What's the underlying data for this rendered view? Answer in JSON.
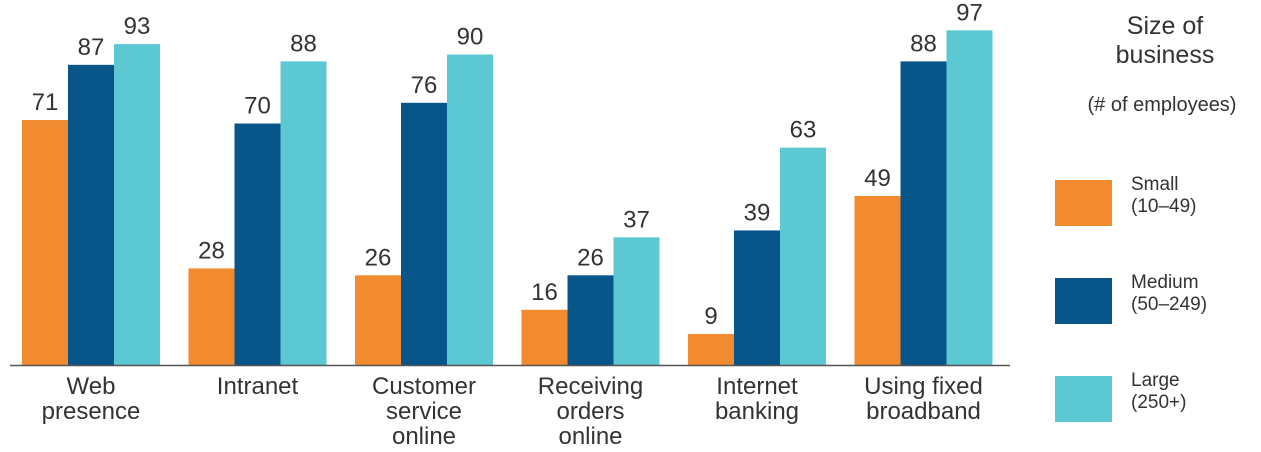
{
  "chart_data": {
    "type": "bar",
    "categories": [
      [
        "Web",
        "presence"
      ],
      [
        "Intranet"
      ],
      [
        "Customer",
        "service",
        "online"
      ],
      [
        "Receiving",
        "orders",
        "online"
      ],
      [
        "Internet",
        "banking"
      ],
      [
        "Using fixed",
        "broadband"
      ]
    ],
    "series": [
      {
        "name": "Small\n(10–49)",
        "color": "#F28A30",
        "values": [
          71,
          28,
          26,
          16,
          9,
          49
        ]
      },
      {
        "name": "Medium\n(50–249)",
        "color": "#08558A",
        "values": [
          87,
          70,
          76,
          26,
          39,
          88
        ]
      },
      {
        "name": "Large\n(250+)",
        "color": "#5CC8D2",
        "values": [
          93,
          88,
          90,
          37,
          63,
          97
        ]
      }
    ],
    "ylim": [
      0,
      100
    ],
    "grid": false,
    "legend_position": "right",
    "legend_title": "Size of business",
    "legend_subtitle": "(# of employees)"
  }
}
